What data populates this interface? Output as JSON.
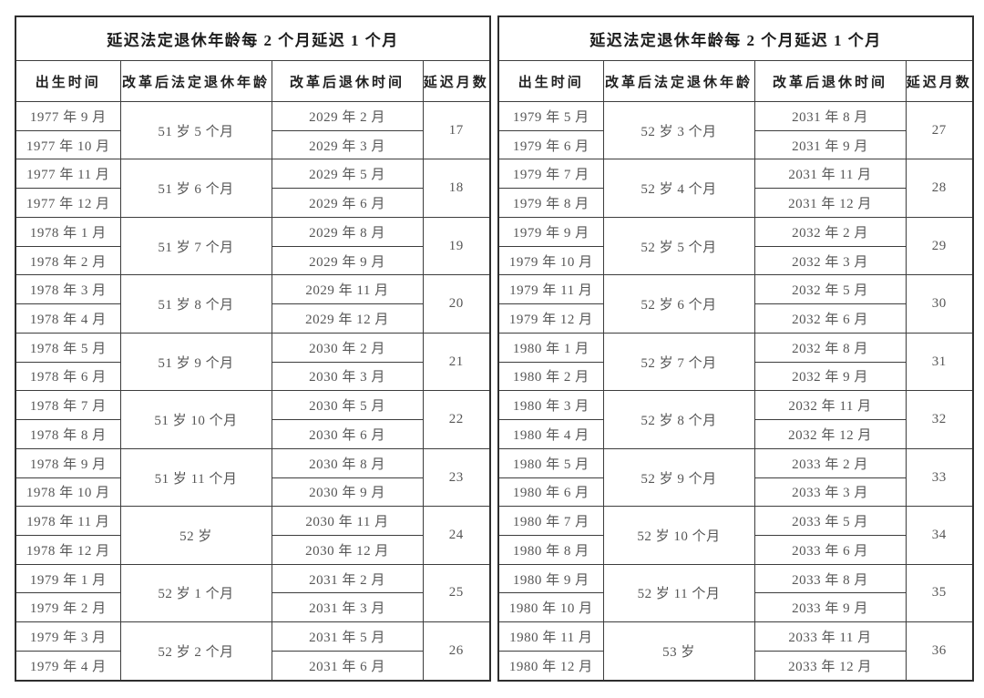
{
  "page": {
    "background": "#ffffff",
    "border_color": "#3d3d3d",
    "body_text_color": "#565656",
    "heading_text_color": "#1c1c1c"
  },
  "columns": [
    "出生时间",
    "改革后法定退休年龄",
    "改革后退休时间",
    "延迟月数"
  ],
  "tables": [
    {
      "title": "延迟法定退休年龄每 2 个月延迟 1 个月",
      "groups": [
        {
          "births": [
            "1977 年 9 月",
            "1977 年 10 月"
          ],
          "age": "51 岁 5 个月",
          "retire": [
            "2029 年 2 月",
            "2029 年 3 月"
          ],
          "delay": "17"
        },
        {
          "births": [
            "1977 年 11 月",
            "1977 年 12 月"
          ],
          "age": "51 岁 6 个月",
          "retire": [
            "2029 年 5 月",
            "2029 年 6 月"
          ],
          "delay": "18"
        },
        {
          "births": [
            "1978 年 1 月",
            "1978 年 2 月"
          ],
          "age": "51 岁 7 个月",
          "retire": [
            "2029 年 8 月",
            "2029 年 9 月"
          ],
          "delay": "19"
        },
        {
          "births": [
            "1978 年 3 月",
            "1978 年 4 月"
          ],
          "age": "51 岁 8 个月",
          "retire": [
            "2029 年 11 月",
            "2029 年 12 月"
          ],
          "delay": "20"
        },
        {
          "births": [
            "1978 年 5 月",
            "1978 年 6 月"
          ],
          "age": "51 岁 9 个月",
          "retire": [
            "2030 年 2 月",
            "2030 年 3 月"
          ],
          "delay": "21"
        },
        {
          "births": [
            "1978 年 7 月",
            "1978 年 8 月"
          ],
          "age": "51 岁 10 个月",
          "retire": [
            "2030 年 5 月",
            "2030 年 6 月"
          ],
          "delay": "22"
        },
        {
          "births": [
            "1978 年 9 月",
            "1978 年 10 月"
          ],
          "age": "51 岁 11 个月",
          "retire": [
            "2030 年 8 月",
            "2030 年 9 月"
          ],
          "delay": "23"
        },
        {
          "births": [
            "1978 年 11 月",
            "1978 年 12 月"
          ],
          "age": "52 岁",
          "retire": [
            "2030 年 11 月",
            "2030 年 12 月"
          ],
          "delay": "24"
        },
        {
          "births": [
            "1979 年 1 月",
            "1979 年 2 月"
          ],
          "age": "52 岁 1 个月",
          "retire": [
            "2031 年 2 月",
            "2031 年 3 月"
          ],
          "delay": "25"
        },
        {
          "births": [
            "1979 年 3 月",
            "1979 年 4 月"
          ],
          "age": "52 岁 2 个月",
          "retire": [
            "2031 年 5 月",
            "2031 年 6 月"
          ],
          "delay": "26"
        }
      ]
    },
    {
      "title": "延迟法定退休年龄每 2 个月延迟 1 个月",
      "groups": [
        {
          "births": [
            "1979 年 5 月",
            "1979 年 6 月"
          ],
          "age": "52 岁 3 个月",
          "retire": [
            "2031 年 8 月",
            "2031 年 9 月"
          ],
          "delay": "27"
        },
        {
          "births": [
            "1979 年 7 月",
            "1979 年 8 月"
          ],
          "age": "52 岁 4 个月",
          "retire": [
            "2031 年 11 月",
            "2031 年 12 月"
          ],
          "delay": "28"
        },
        {
          "births": [
            "1979 年 9 月",
            "1979 年 10 月"
          ],
          "age": "52 岁 5 个月",
          "retire": [
            "2032 年 2 月",
            "2032 年 3 月"
          ],
          "delay": "29"
        },
        {
          "births": [
            "1979 年 11 月",
            "1979 年 12 月"
          ],
          "age": "52 岁 6 个月",
          "retire": [
            "2032 年 5 月",
            "2032 年 6 月"
          ],
          "delay": "30"
        },
        {
          "births": [
            "1980 年 1 月",
            "1980 年 2 月"
          ],
          "age": "52 岁 7 个月",
          "retire": [
            "2032 年 8 月",
            "2032 年 9 月"
          ],
          "delay": "31"
        },
        {
          "births": [
            "1980 年 3 月",
            "1980 年 4 月"
          ],
          "age": "52 岁 8 个月",
          "retire": [
            "2032 年 11 月",
            "2032 年 12 月"
          ],
          "delay": "32"
        },
        {
          "births": [
            "1980 年 5 月",
            "1980 年 6 月"
          ],
          "age": "52 岁 9 个月",
          "retire": [
            "2033 年 2 月",
            "2033 年 3 月"
          ],
          "delay": "33"
        },
        {
          "births": [
            "1980 年 7 月",
            "1980 年 8 月"
          ],
          "age": "52 岁 10 个月",
          "retire": [
            "2033 年 5 月",
            "2033 年 6 月"
          ],
          "delay": "34"
        },
        {
          "births": [
            "1980 年 9 月",
            "1980 年 10 月"
          ],
          "age": "52 岁 11 个月",
          "retire": [
            "2033 年 8 月",
            "2033 年 9 月"
          ],
          "delay": "35"
        },
        {
          "births": [
            "1980 年 11 月",
            "1980 年 12 月"
          ],
          "age": "53 岁",
          "retire": [
            "2033 年 11 月",
            "2033 年 12 月"
          ],
          "delay": "36"
        }
      ]
    }
  ]
}
